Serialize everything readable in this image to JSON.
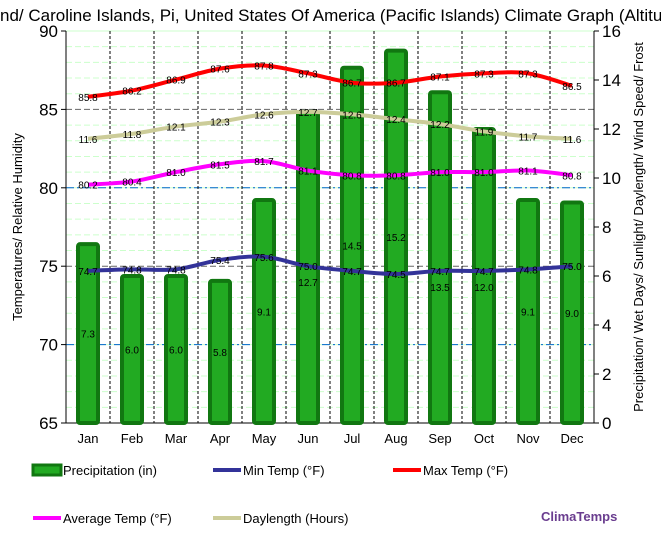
{
  "chart_data": {
    "type": "bar+line",
    "title": "nd/ Caroline Islands, Pi, United States Of America (Pacific Islands) Climate Graph (Altitud",
    "categories": [
      "Jan",
      "Feb",
      "Mar",
      "Apr",
      "May",
      "Jun",
      "Jul",
      "Aug",
      "Sep",
      "Oct",
      "Nov",
      "Dec"
    ],
    "ylabel_left": "Temperatures/ Relative Humidity",
    "ylabel_right": "Precipitation/ Wet Days/ Sunlight/ Daylength/ Wind Speed/ Frost",
    "ylim_left": [
      65,
      90
    ],
    "ylim_right": [
      0,
      16
    ],
    "yticks_left": [
      65,
      70,
      75,
      80,
      85,
      90
    ],
    "yticks_right": [
      0,
      2,
      4,
      6,
      8,
      10,
      12,
      14,
      16
    ],
    "grid": true,
    "series": [
      {
        "name": "Precipitation (in)",
        "type": "bar",
        "axis": "right",
        "color": "#22aa22",
        "values": [
          7.3,
          6.0,
          6.0,
          5.8,
          9.1,
          12.7,
          14.5,
          15.2,
          13.5,
          12.0,
          9.1,
          9.0
        ]
      },
      {
        "name": "Min Temp (°F)",
        "type": "line",
        "axis": "left",
        "color": "#333399",
        "values": [
          74.7,
          74.8,
          74.8,
          75.4,
          75.6,
          75.0,
          74.7,
          74.5,
          74.7,
          74.7,
          74.8,
          75.0
        ]
      },
      {
        "name": "Max Temp (°F)",
        "type": "line",
        "axis": "left",
        "color": "#ff0000",
        "values": [
          85.8,
          86.2,
          86.9,
          87.6,
          87.8,
          87.3,
          86.7,
          86.7,
          87.1,
          87.3,
          87.3,
          86.5
        ]
      },
      {
        "name": "Average Temp (°F)",
        "type": "line",
        "axis": "left",
        "color": "#ff00ff",
        "values": [
          80.2,
          80.4,
          81.0,
          81.5,
          81.7,
          81.1,
          80.8,
          80.8,
          81.0,
          81.0,
          81.1,
          80.8
        ]
      },
      {
        "name": "Daylength (Hours)",
        "type": "line",
        "axis": "right",
        "color": "#cccc99",
        "values": [
          11.6,
          11.8,
          12.1,
          12.3,
          12.6,
          12.7,
          12.6,
          12.4,
          12.2,
          11.9,
          11.7,
          11.6
        ]
      }
    ]
  },
  "brand": "ClimaTemps"
}
